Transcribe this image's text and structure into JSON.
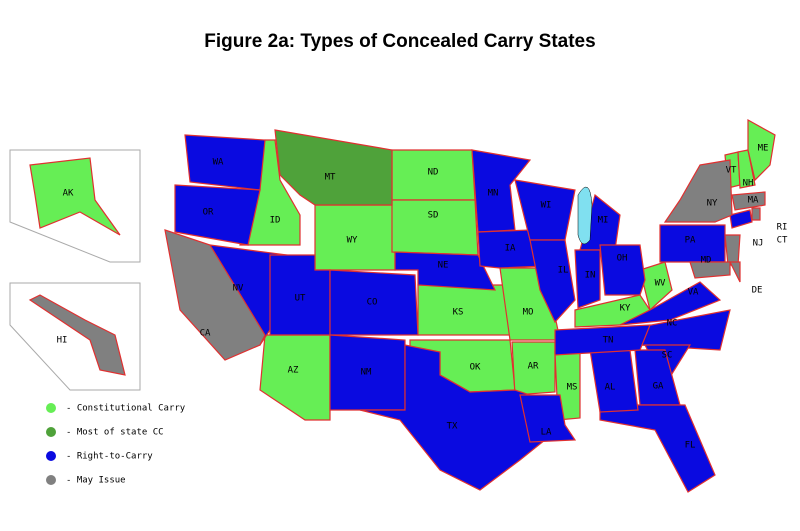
{
  "title": "Figure 2a: Types of Concealed Carry States",
  "legend": [
    {
      "label": "- Constitutional Carry",
      "color": "#66ee55",
      "states": [
        "AK",
        "ID",
        "WY",
        "ND",
        "SD",
        "KS",
        "OK",
        "MO",
        "AR",
        "MS",
        "KY",
        "WV",
        "AZ",
        "VT",
        "NH",
        "ME"
      ]
    },
    {
      "label": "- Most of state CC",
      "color": "#4fa23a",
      "states": [
        "MT"
      ]
    },
    {
      "label": "- Right-to-Carry",
      "color": "#0a0ae0",
      "states": [
        "WA",
        "OR",
        "NV",
        "UT",
        "CO",
        "NM",
        "TX",
        "NE",
        "MN",
        "IA",
        "WI",
        "MI",
        "IL",
        "IN",
        "OH",
        "PA",
        "VA",
        "NC",
        "SC",
        "GA",
        "FL",
        "AL",
        "TN",
        "LA",
        "CT"
      ]
    },
    {
      "label": "- May Issue",
      "color": "#808080",
      "states": [
        "CA",
        "HI",
        "NY",
        "MA",
        "NJ",
        "MD",
        "DE",
        "RI"
      ]
    }
  ]
}
